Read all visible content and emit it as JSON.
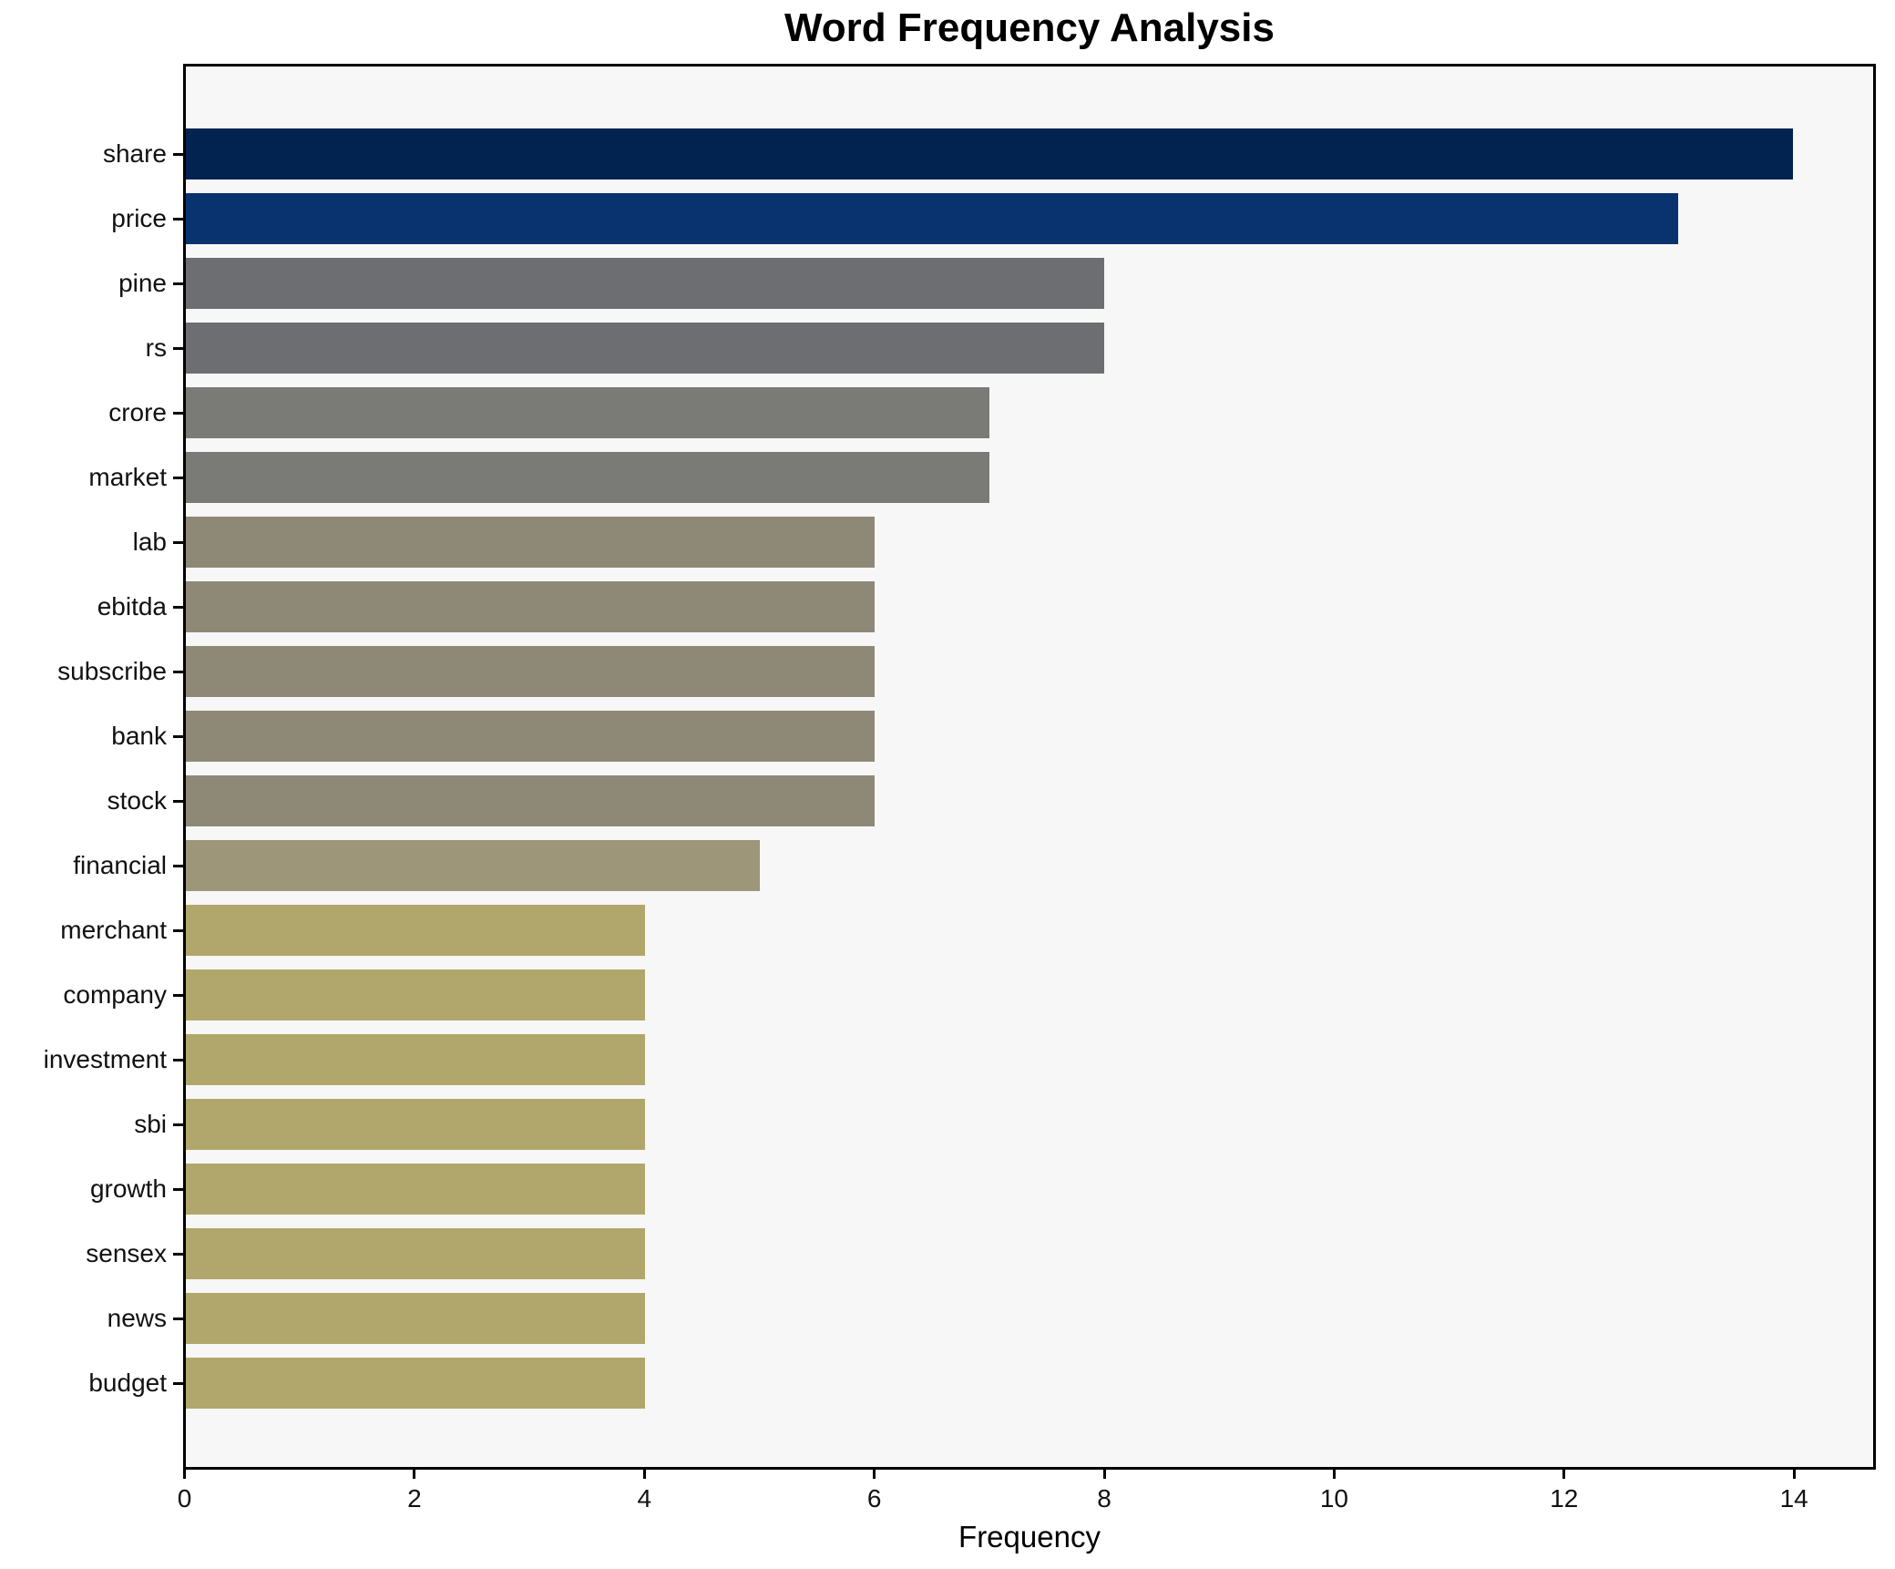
{
  "figure": {
    "background": "#ffffff",
    "plot_background": "#f7f7f7",
    "spine_color": "#000000",
    "tick_color": "#000000",
    "text_color": "#111111"
  },
  "chart_data": {
    "type": "bar",
    "orientation": "horizontal",
    "title": "Word Frequency Analysis",
    "xlabel": "Frequency",
    "ylabel": "",
    "xlim": [
      0,
      14.7
    ],
    "x_ticks": [
      0,
      2,
      4,
      6,
      8,
      10,
      12,
      14
    ],
    "grid": false,
    "legend": false,
    "categories": [
      "share",
      "price",
      "pine",
      "rs",
      "crore",
      "market",
      "lab",
      "ebitda",
      "subscribe",
      "bank",
      "stock",
      "financial",
      "merchant",
      "company",
      "investment",
      "sbi",
      "growth",
      "sensex",
      "news",
      "budget"
    ],
    "values": [
      14,
      13,
      8,
      8,
      7,
      7,
      6,
      6,
      6,
      6,
      6,
      5,
      4,
      4,
      4,
      4,
      4,
      4,
      4,
      4
    ],
    "bar_colors": [
      "#022350",
      "#09336F",
      "#6C6E71",
      "#6C6E71",
      "#7A7A77",
      "#7A7A77",
      "#8E8977",
      "#8E8977",
      "#8E8977",
      "#8E8977",
      "#8E8977",
      "#9D9678",
      "#B1A76C",
      "#B1A76C",
      "#B1A76C",
      "#B1A76C",
      "#B1A76C",
      "#B1A76C",
      "#B1A76C",
      "#B1A76C"
    ]
  }
}
